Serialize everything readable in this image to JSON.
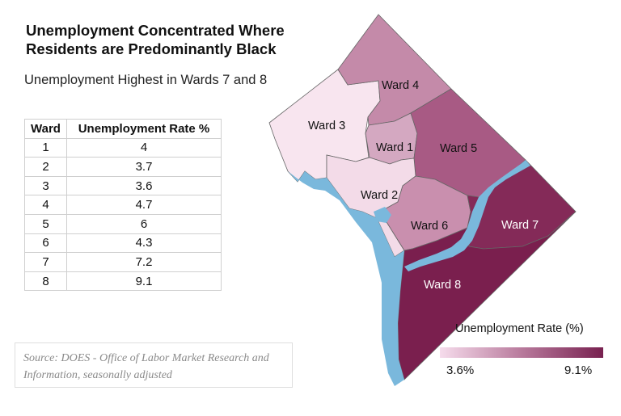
{
  "title": "Unemployment Concentrated Where Residents are Predominantly Black",
  "subtitle": "Unemployment Highest in Wards 7 and 8",
  "table": {
    "headers": [
      "Ward",
      "Unemployment Rate %"
    ],
    "rows": [
      [
        "1",
        "4"
      ],
      [
        "2",
        "3.7"
      ],
      [
        "3",
        "3.6"
      ],
      [
        "4",
        "4.7"
      ],
      [
        "5",
        "6"
      ],
      [
        "6",
        "4.3"
      ],
      [
        "7",
        "7.2"
      ],
      [
        "8",
        "9.1"
      ]
    ]
  },
  "source": "Source: DOES - Office of Labor Market Research and Information, seasonally adjusted",
  "map": {
    "wards": [
      {
        "label": "Ward 1",
        "rate": 4,
        "color": "#d4a8c1"
      },
      {
        "label": "Ward 2",
        "rate": 3.7,
        "color": "#f3dbe8"
      },
      {
        "label": "Ward 3",
        "rate": 3.6,
        "color": "#f8e5ef"
      },
      {
        "label": "Ward 4",
        "rate": 4.7,
        "color": "#c48aa9"
      },
      {
        "label": "Ward 5",
        "rate": 6,
        "color": "#a85a84"
      },
      {
        "label": "Ward 6",
        "rate": 4.3,
        "color": "#c98fae"
      },
      {
        "label": "Ward 7",
        "rate": 7.2,
        "color": "#842a58"
      },
      {
        "label": "Ward 8",
        "rate": 9.1,
        "color": "#7a1f4e"
      }
    ],
    "water_color": "#7ab8dc"
  },
  "legend": {
    "title": "Unemployment Rate (%)",
    "min_label": "3.6%",
    "max_label": "9.1%",
    "min_color": "#f6dcec",
    "max_color": "#782150"
  }
}
